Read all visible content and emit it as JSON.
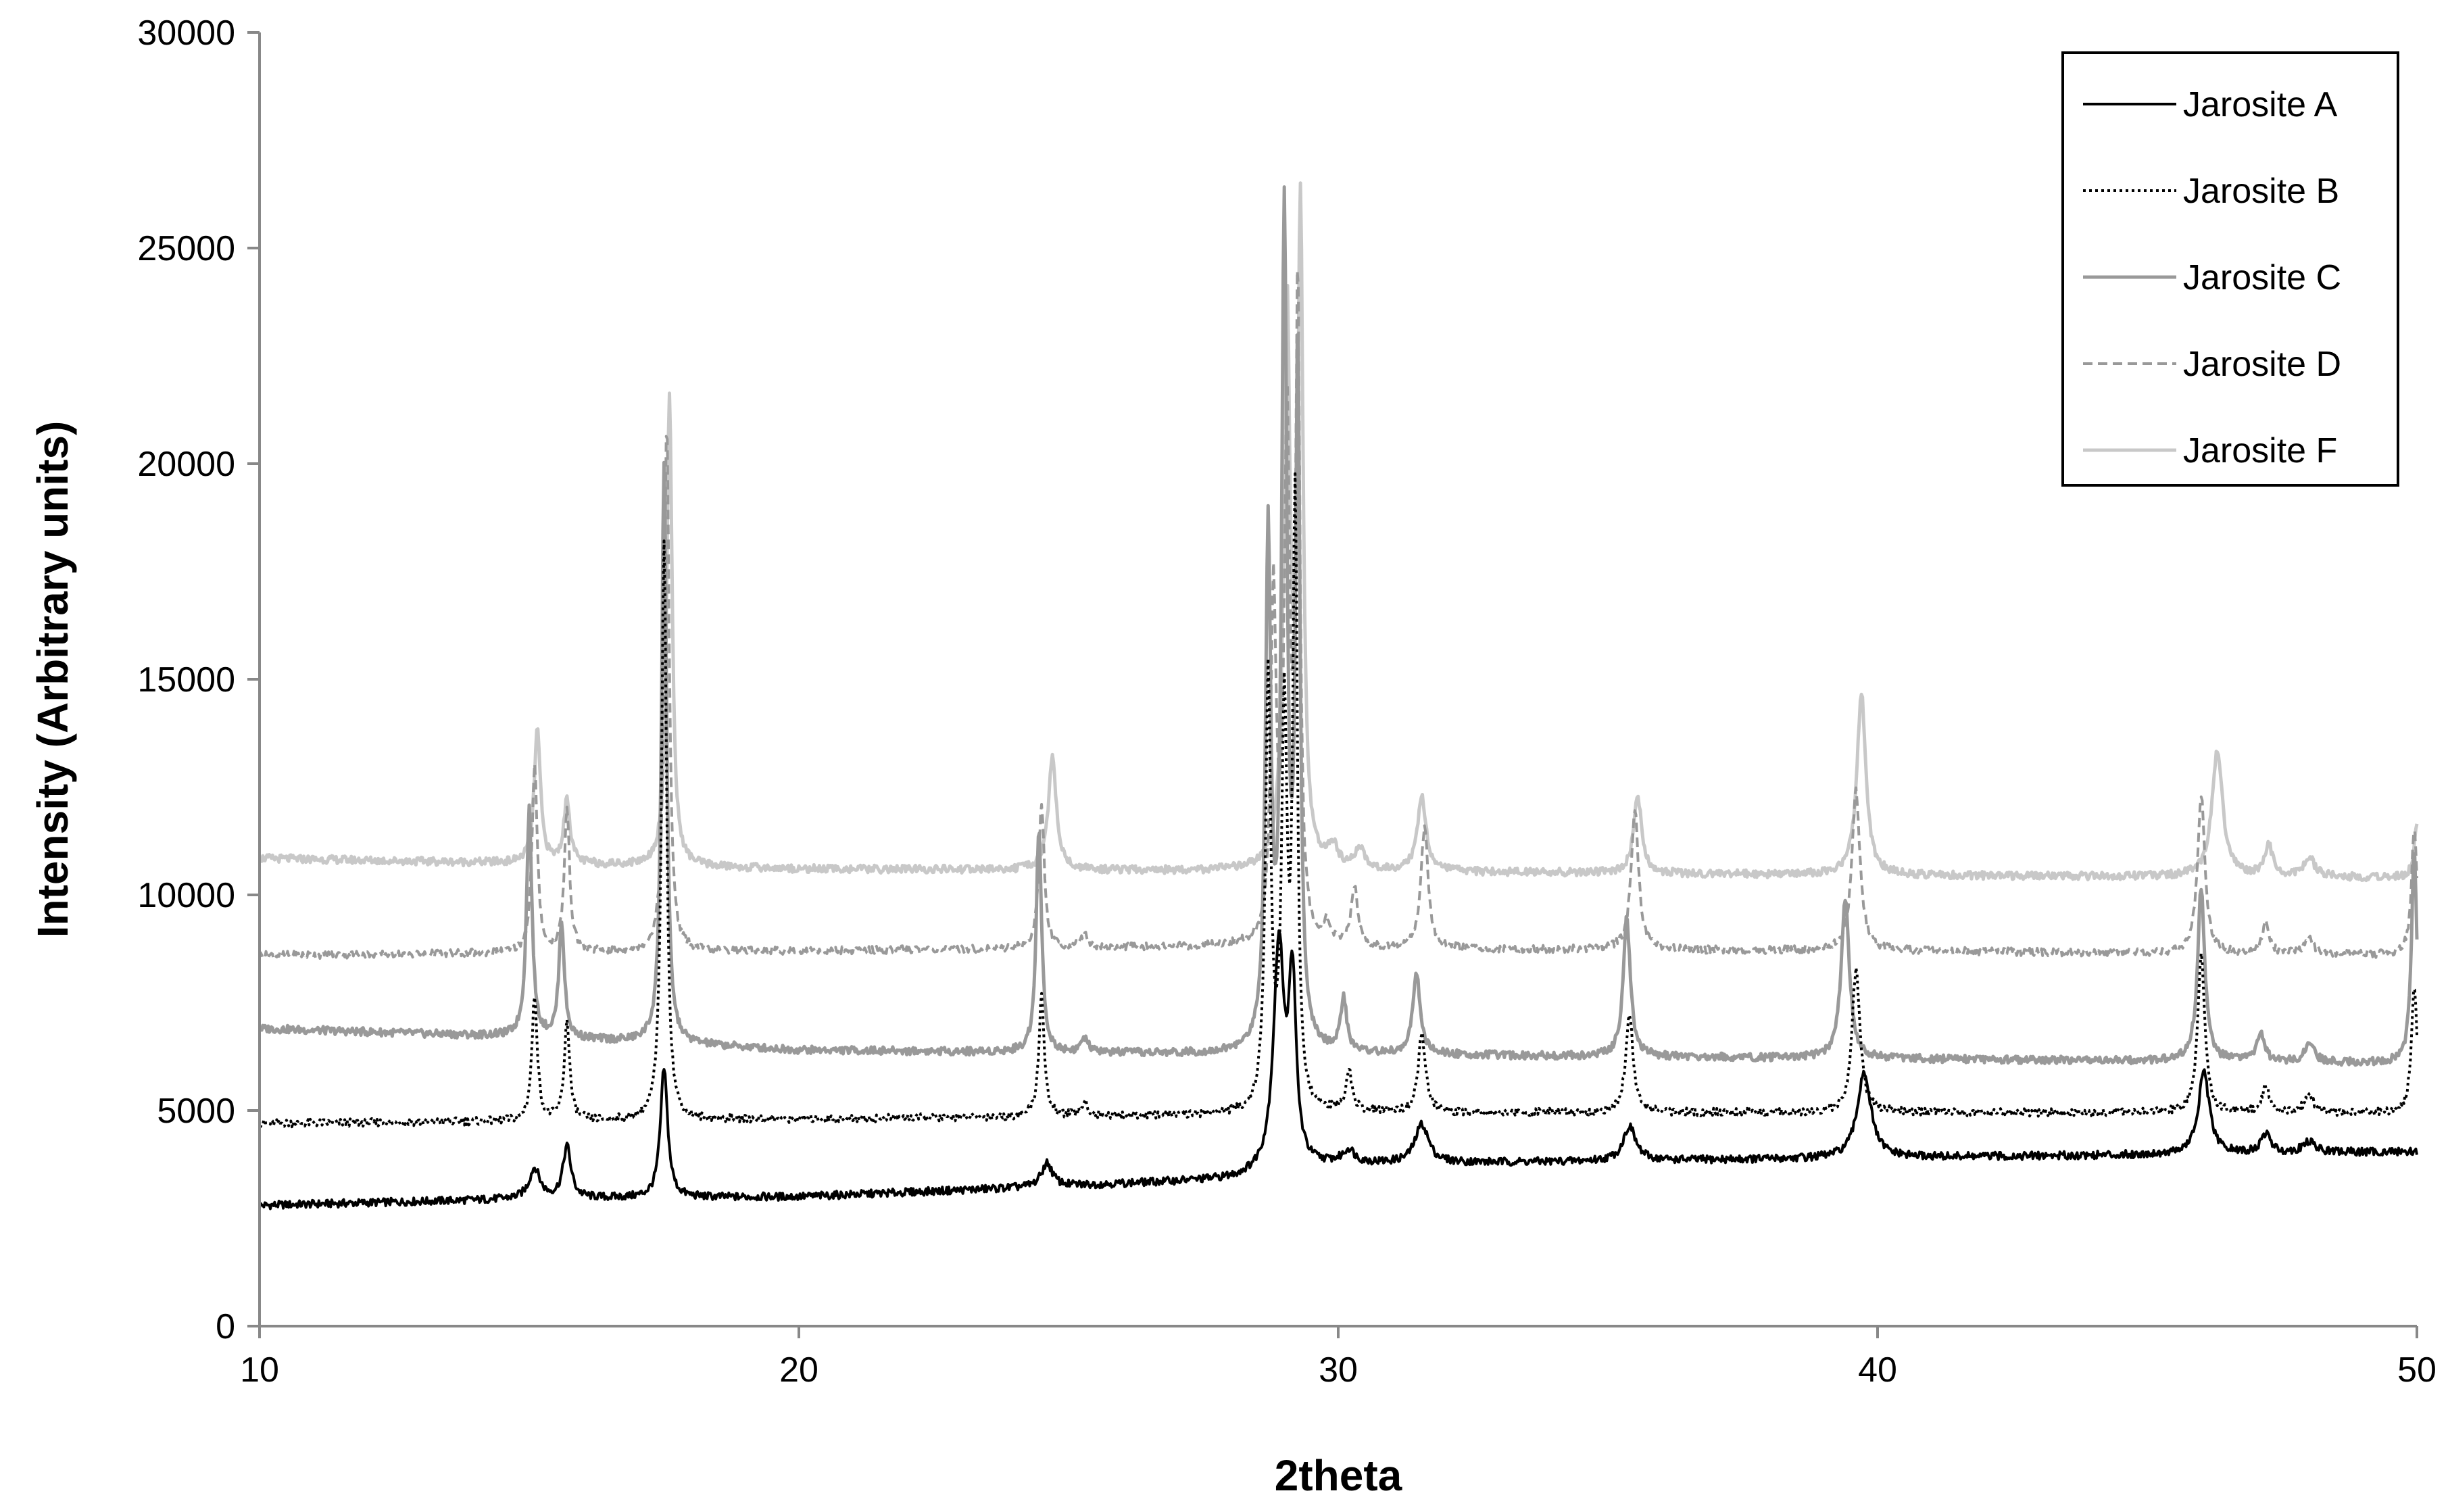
{
  "chart_data": {
    "type": "line",
    "title": "",
    "xlabel": "2theta",
    "ylabel": "Intensity (Arbitrary units)",
    "xlim": [
      10,
      50
    ],
    "ylim": [
      0,
      30000
    ],
    "x_ticks": [
      10,
      20,
      30,
      40,
      50
    ],
    "y_ticks": [
      0,
      5000,
      10000,
      15000,
      20000,
      25000,
      30000
    ],
    "grid": false,
    "legend_position": "top-right",
    "peak_positions": [
      15.1,
      15.7,
      17.5,
      24.5,
      28.7,
      29.0,
      29.2,
      30.2,
      31.5,
      35.4,
      39.6,
      46.0,
      47.2,
      48.0
    ],
    "series": [
      {
        "name": "Jarosite A",
        "color": "#000000",
        "dash": "solid",
        "baseline": [
          [
            10,
            2800
          ],
          [
            15,
            2950
          ],
          [
            20,
            3000
          ],
          [
            28,
            3400
          ],
          [
            30,
            3750
          ],
          [
            40,
            3900
          ],
          [
            50,
            4050
          ]
        ],
        "peaks": [
          [
            15.1,
            700,
            0.12
          ],
          [
            15.7,
            1200,
            0.09
          ],
          [
            17.5,
            3000,
            0.08
          ],
          [
            24.6,
            550,
            0.12
          ],
          [
            28.9,
            5200,
            0.12
          ],
          [
            29.15,
            4200,
            0.08
          ],
          [
            30.2,
            300,
            0.12
          ],
          [
            31.55,
            900,
            0.15
          ],
          [
            35.4,
            800,
            0.14
          ],
          [
            39.75,
            2000,
            0.15
          ],
          [
            46.05,
            1900,
            0.12
          ],
          [
            47.2,
            450,
            0.1
          ],
          [
            48.0,
            250,
            0.14
          ]
        ]
      },
      {
        "name": "Jarosite B",
        "color": "#000000",
        "dash": "dotted",
        "baseline": [
          [
            10,
            4700
          ],
          [
            20,
            4800
          ],
          [
            28,
            4900
          ],
          [
            30,
            4950
          ],
          [
            40,
            4950
          ],
          [
            50,
            4950
          ]
        ],
        "peaks": [
          [
            15.1,
            2900,
            0.06
          ],
          [
            15.7,
            2300,
            0.06
          ],
          [
            17.5,
            13500,
            0.055
          ],
          [
            24.5,
            2800,
            0.06
          ],
          [
            25.3,
            300,
            0.08
          ],
          [
            28.7,
            10000,
            0.06
          ],
          [
            29.0,
            9000,
            0.06
          ],
          [
            29.2,
            14000,
            0.05
          ],
          [
            30.2,
            900,
            0.07
          ],
          [
            31.55,
            1800,
            0.08
          ],
          [
            35.4,
            2300,
            0.08
          ],
          [
            39.6,
            3300,
            0.09
          ],
          [
            46.0,
            3600,
            0.08
          ],
          [
            47.2,
            600,
            0.08
          ],
          [
            48.0,
            400,
            0.1
          ],
          [
            49.95,
            3000,
            0.06
          ]
        ]
      },
      {
        "name": "Jarosite C",
        "color": "#999999",
        "dash": "solid",
        "baseline": [
          [
            10,
            6900
          ],
          [
            15,
            6700
          ],
          [
            20,
            6400
          ],
          [
            28,
            6300
          ],
          [
            30,
            6300
          ],
          [
            40,
            6200
          ],
          [
            50,
            6100
          ]
        ],
        "peaks": [
          [
            15.0,
            5300,
            0.06
          ],
          [
            15.6,
            2700,
            0.06
          ],
          [
            17.5,
            13500,
            0.055
          ],
          [
            24.45,
            5200,
            0.06
          ],
          [
            25.3,
            300,
            0.08
          ],
          [
            28.7,
            11800,
            0.06
          ],
          [
            29.0,
            19000,
            0.06
          ],
          [
            29.25,
            16000,
            0.05
          ],
          [
            30.1,
            1200,
            0.07
          ],
          [
            31.45,
            1900,
            0.08
          ],
          [
            35.35,
            3200,
            0.08
          ],
          [
            39.4,
            3700,
            0.09
          ],
          [
            46.0,
            4000,
            0.08
          ],
          [
            47.1,
            700,
            0.08
          ],
          [
            48.0,
            450,
            0.1
          ],
          [
            49.95,
            5000,
            0.06
          ]
        ]
      },
      {
        "name": "Jarosite D",
        "color": "#999999",
        "dash": "dashed",
        "baseline": [
          [
            10,
            8600
          ],
          [
            20,
            8700
          ],
          [
            28,
            8800
          ],
          [
            30,
            8750
          ],
          [
            40,
            8700
          ],
          [
            50,
            8600
          ]
        ],
        "peaks": [
          [
            15.1,
            4300,
            0.06
          ],
          [
            15.7,
            3300,
            0.06
          ],
          [
            17.55,
            12300,
            0.055
          ],
          [
            24.5,
            3400,
            0.06
          ],
          [
            25.3,
            300,
            0.08
          ],
          [
            28.8,
            8000,
            0.06
          ],
          [
            29.05,
            12000,
            0.06
          ],
          [
            29.25,
            15000,
            0.05
          ],
          [
            29.8,
            500,
            0.08
          ],
          [
            30.3,
            1400,
            0.07
          ],
          [
            31.6,
            2800,
            0.08
          ],
          [
            35.5,
            3300,
            0.08
          ],
          [
            39.6,
            3700,
            0.09
          ],
          [
            46.0,
            3700,
            0.08
          ],
          [
            47.2,
            700,
            0.08
          ],
          [
            48.0,
            350,
            0.1
          ],
          [
            49.95,
            3000,
            0.06
          ]
        ]
      },
      {
        "name": "Jarosite F",
        "color": "#c8c8c8",
        "dash": "solid",
        "baseline": [
          [
            10,
            10850
          ],
          [
            20,
            10600
          ],
          [
            28,
            10550
          ],
          [
            30,
            10550
          ],
          [
            40,
            10450
          ],
          [
            50,
            10400
          ]
        ],
        "peaks": [
          [
            15.15,
            3100,
            0.07
          ],
          [
            15.7,
            1500,
            0.07
          ],
          [
            17.6,
            11000,
            0.06
          ],
          [
            24.7,
            2600,
            0.09
          ],
          [
            29.05,
            13000,
            0.07
          ],
          [
            29.3,
            15000,
            0.06
          ],
          [
            29.9,
            500,
            0.1
          ],
          [
            30.4,
            500,
            0.1
          ],
          [
            31.55,
            1700,
            0.1
          ],
          [
            35.55,
            1800,
            0.09
          ],
          [
            39.7,
            4200,
            0.1
          ],
          [
            46.3,
            2900,
            0.12
          ],
          [
            47.25,
            700,
            0.1
          ],
          [
            48.0,
            450,
            0.12
          ],
          [
            50.0,
            1200,
            0.06
          ]
        ]
      }
    ]
  }
}
